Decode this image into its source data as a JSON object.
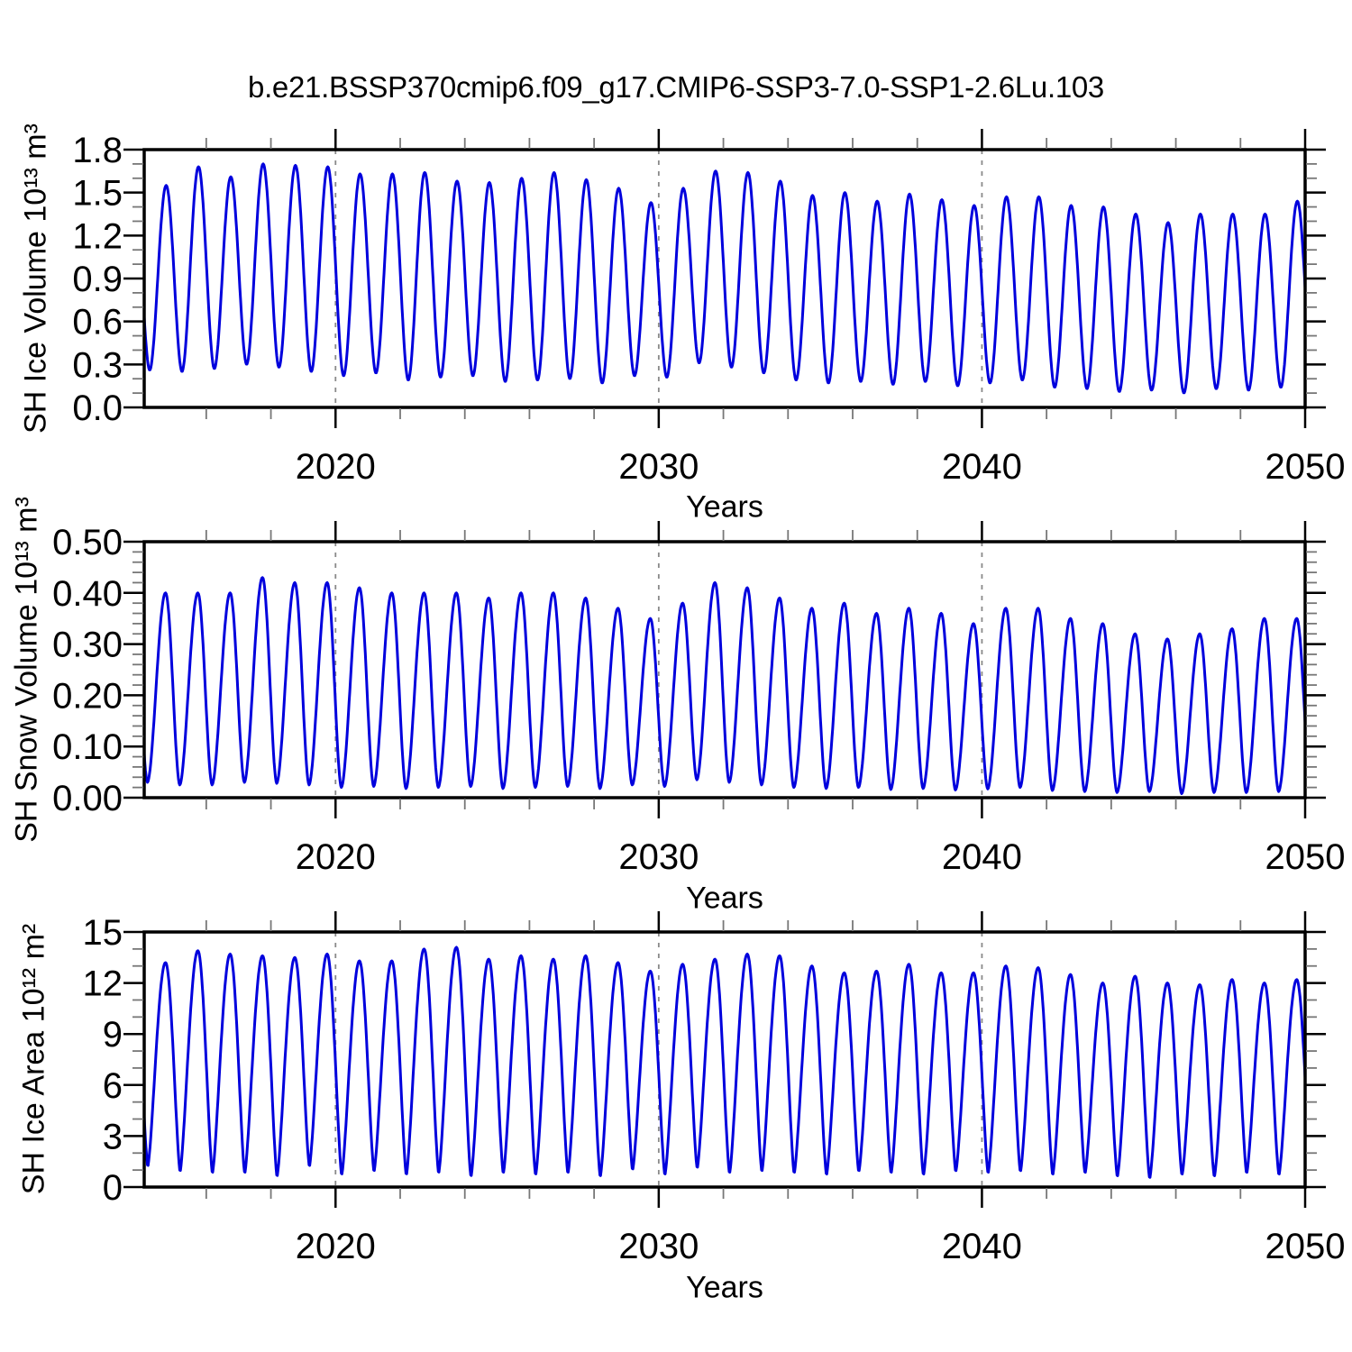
{
  "title": "b.e21.BSSP370cmip6.f09_g17.CMIP6-SSP3-7.0-SSP1-2.6Lu.103",
  "line_color": "#0000DD",
  "grid_color": "#8a8a8a",
  "axis_color": "#000000",
  "minor_tick_color": "#777777",
  "x_axis": {
    "label": "Years",
    "range": [
      2014.08,
      2050.0
    ],
    "major_ticks": [
      2020,
      2030,
      2040,
      2050
    ],
    "major_tick_labels": [
      "2020",
      "2030",
      "2040",
      "2050"
    ],
    "minor_tick_step": 2,
    "grid_years": [
      2020,
      2030,
      2040
    ]
  },
  "chart_data": [
    {
      "id": "sh-ice-volume",
      "type": "line",
      "ylabel": "SH Ice Volume 10¹³ m³",
      "ylim": [
        0,
        1.8
      ],
      "ytick_values": [
        0.0,
        0.3,
        0.6,
        0.9,
        1.2,
        1.5,
        1.8
      ],
      "ytick_labels": [
        "0.0",
        "0.3",
        "0.6",
        "0.9",
        "1.2",
        "1.5",
        "1.8"
      ],
      "yminor_step": 0.1,
      "seasonal_cycle": {
        "start_year": 2014,
        "min_phase": 0.25,
        "max_phase": 0.76,
        "shape": 0.95
      },
      "annual_max": [
        1.55,
        1.68,
        1.61,
        1.7,
        1.69,
        1.68,
        1.63,
        1.63,
        1.64,
        1.58,
        1.57,
        1.6,
        1.64,
        1.59,
        1.53,
        1.43,
        1.53,
        1.65,
        1.64,
        1.58,
        1.48,
        1.5,
        1.44,
        1.49,
        1.45,
        1.41,
        1.47,
        1.47,
        1.41,
        1.4,
        1.35,
        1.29,
        1.35,
        1.35,
        1.35,
        1.44
      ],
      "annual_min": [
        0.26,
        0.25,
        0.27,
        0.3,
        0.28,
        0.25,
        0.22,
        0.24,
        0.19,
        0.21,
        0.22,
        0.18,
        0.19,
        0.2,
        0.17,
        0.22,
        0.21,
        0.31,
        0.28,
        0.24,
        0.19,
        0.17,
        0.18,
        0.16,
        0.18,
        0.15,
        0.17,
        0.19,
        0.14,
        0.13,
        0.11,
        0.12,
        0.1,
        0.13,
        0.12,
        0.14
      ]
    },
    {
      "id": "sh-snow-volume",
      "type": "line",
      "ylabel": "SH Snow Volume 10¹³ m³",
      "ylim": [
        0,
        0.5
      ],
      "ytick_values": [
        0.0,
        0.1,
        0.2,
        0.3,
        0.4,
        0.5
      ],
      "ytick_labels": [
        "0.00",
        "0.10",
        "0.20",
        "0.30",
        "0.40",
        "0.50"
      ],
      "yminor_step": 0.02,
      "seasonal_cycle": {
        "start_year": 2014,
        "min_phase": 0.18,
        "max_phase": 0.74,
        "shape": 0.9
      },
      "annual_max": [
        0.4,
        0.4,
        0.4,
        0.43,
        0.42,
        0.42,
        0.41,
        0.4,
        0.4,
        0.4,
        0.39,
        0.4,
        0.4,
        0.39,
        0.37,
        0.35,
        0.38,
        0.42,
        0.41,
        0.39,
        0.37,
        0.38,
        0.36,
        0.37,
        0.36,
        0.34,
        0.37,
        0.37,
        0.35,
        0.34,
        0.32,
        0.31,
        0.32,
        0.33,
        0.35,
        0.35
      ],
      "annual_min": [
        0.03,
        0.025,
        0.025,
        0.03,
        0.028,
        0.025,
        0.02,
        0.022,
        0.018,
        0.02,
        0.022,
        0.018,
        0.02,
        0.022,
        0.018,
        0.025,
        0.022,
        0.035,
        0.03,
        0.025,
        0.02,
        0.018,
        0.02,
        0.016,
        0.018,
        0.015,
        0.017,
        0.02,
        0.014,
        0.012,
        0.01,
        0.012,
        0.008,
        0.01,
        0.01,
        0.012
      ]
    },
    {
      "id": "sh-ice-area",
      "type": "line",
      "ylabel": "SH Ice Area 10¹² m²",
      "ylim": [
        0,
        15
      ],
      "ytick_values": [
        0,
        3,
        6,
        9,
        12,
        15
      ],
      "ytick_labels": [
        "0",
        "3",
        "6",
        "9",
        "12",
        "15"
      ],
      "yminor_step": 1,
      "seasonal_cycle": {
        "start_year": 2014,
        "min_phase": 0.19,
        "max_phase": 0.74,
        "shape": 0.72
      },
      "annual_max": [
        13.2,
        13.9,
        13.7,
        13.6,
        13.5,
        13.7,
        13.3,
        13.3,
        14.0,
        14.1,
        13.4,
        13.6,
        13.4,
        13.6,
        13.2,
        12.7,
        13.1,
        13.4,
        13.7,
        13.6,
        13.0,
        12.6,
        12.7,
        13.1,
        12.6,
        12.6,
        13.0,
        12.9,
        12.5,
        12.0,
        12.4,
        12.0,
        11.9,
        12.2,
        12.0,
        12.2
      ],
      "annual_min": [
        1.2,
        0.9,
        0.8,
        0.8,
        0.6,
        1.2,
        0.7,
        0.9,
        0.7,
        0.8,
        0.6,
        0.8,
        0.7,
        0.8,
        0.6,
        1.0,
        0.7,
        1.1,
        0.8,
        0.9,
        0.8,
        0.7,
        0.9,
        0.8,
        0.7,
        0.9,
        0.8,
        0.9,
        0.7,
        0.8,
        0.6,
        0.5,
        0.7,
        0.6,
        0.8,
        0.7
      ]
    }
  ]
}
